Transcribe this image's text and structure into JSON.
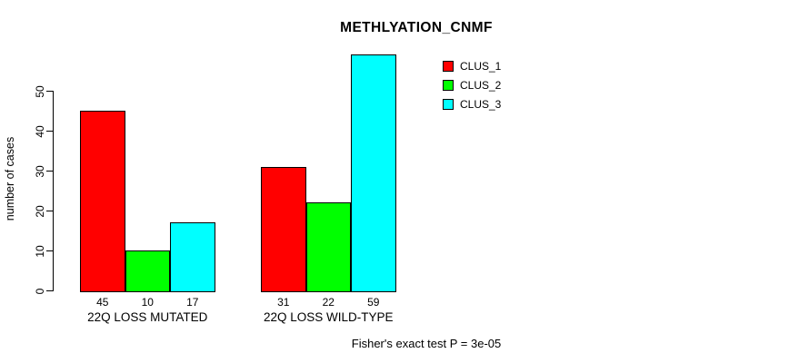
{
  "title": "METHLYATION_CNMF",
  "footer": "Fisher's exact test P = 3e-05",
  "chart_data": {
    "type": "bar",
    "title": "METHLYATION_CNMF",
    "xlabel": "",
    "ylabel": "number of cases",
    "ylim": [
      0,
      59
    ],
    "yticks": [
      0,
      10,
      20,
      30,
      40,
      50
    ],
    "grid": false,
    "legend_position": "top-right",
    "categories": [
      "22Q LOSS MUTATED",
      "22Q LOSS WILD-TYPE"
    ],
    "series": [
      {
        "name": "CLUS_1",
        "color": "#FF0000",
        "values": [
          45,
          31
        ]
      },
      {
        "name": "CLUS_2",
        "color": "#00FF00",
        "values": [
          10,
          22
        ]
      },
      {
        "name": "CLUS_3",
        "color": "#00FFFF",
        "values": [
          17,
          59
        ]
      }
    ],
    "bar_value_labels": [
      [
        45,
        10,
        17
      ],
      [
        31,
        22,
        59
      ]
    ],
    "annotation": "Fisher's exact test P = 3e-05"
  }
}
